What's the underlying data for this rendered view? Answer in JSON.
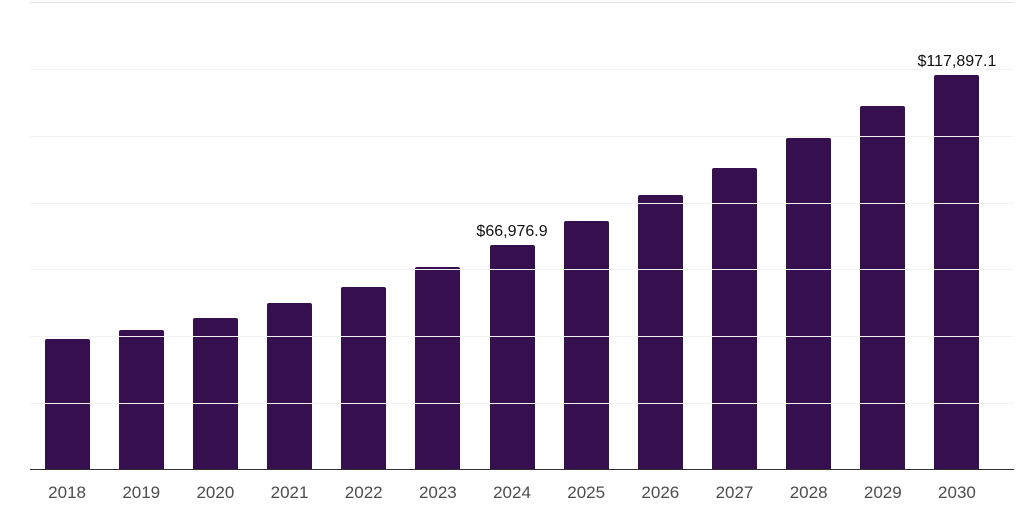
{
  "chart_data": {
    "type": "bar",
    "title": "",
    "xlabel": "",
    "ylabel": "",
    "categories": [
      "2018",
      "2019",
      "2020",
      "2021",
      "2022",
      "2023",
      "2024",
      "2025",
      "2026",
      "2027",
      "2028",
      "2029",
      "2030"
    ],
    "values": [
      38800,
      41700,
      45200,
      49700,
      54600,
      60400,
      66976.9,
      74100,
      82100,
      90200,
      99000,
      108600,
      117897.1
    ],
    "data_labels": {
      "2024": "$66,976.9",
      "2030": "$117,897.1"
    },
    "ylim": [
      0,
      140000
    ],
    "grid_divisions": 7,
    "gridline_interval": 20000,
    "grid": "horizontal",
    "legend_position": "none",
    "y_axis_tick_labels": "hidden",
    "bar_color": "#36104E"
  },
  "colors": {
    "background": "#ffffff",
    "bar": "#36104E",
    "top_line": "#e4e4e4",
    "gridline": "#f2f2f2",
    "axis_line": "#303030",
    "x_label": "#4d4d4d",
    "data_label": "#111111"
  }
}
